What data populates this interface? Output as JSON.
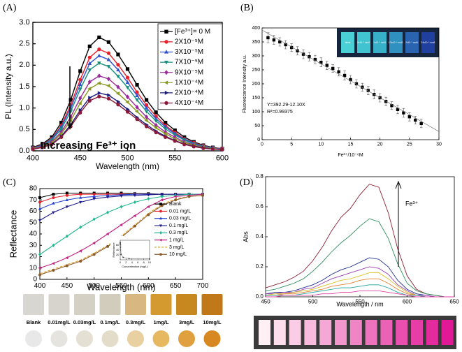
{
  "chart_data": [
    {
      "type": "line",
      "panel_label": "(A)",
      "x_label": "Wavelength (nm)",
      "y_label": "PL (Intensity a.u.)",
      "annotation": "Increasing Fe³⁺ ion",
      "xlim": [
        400,
        600
      ],
      "ylim": [
        0,
        3.0
      ],
      "xticks": [
        400,
        450,
        500,
        550,
        600
      ],
      "yticks": [
        {
          "value": 0,
          "label": "0.0"
        },
        0.5,
        {
          "value": 1,
          "label": "1.0"
        },
        1.5,
        {
          "value": 2,
          "label": "2.0"
        },
        2.5,
        {
          "value": 3,
          "label": "3.0"
        }
      ],
      "x": [
        400,
        410,
        420,
        430,
        440,
        450,
        460,
        470,
        480,
        490,
        500,
        510,
        520,
        530,
        540,
        550,
        560,
        570,
        580,
        590,
        600
      ],
      "series": [
        {
          "name": "[Fe³⁺]= 0 M",
          "color": "#000000",
          "marker": "square",
          "values": [
            0.08,
            0.16,
            0.32,
            0.66,
            1.19,
            1.86,
            2.44,
            2.65,
            2.54,
            2.25,
            1.91,
            1.54,
            1.19,
            0.9,
            0.66,
            0.48,
            0.32,
            0.21,
            0.13,
            0.08,
            0.05
          ]
        },
        {
          "name": "2X10⁻⁵M",
          "color": "#e8202a",
          "marker": "circle",
          "values": [
            0.07,
            0.14,
            0.28,
            0.59,
            1.07,
            1.66,
            2.18,
            2.37,
            2.28,
            2.01,
            1.71,
            1.37,
            1.07,
            0.81,
            0.59,
            0.43,
            0.28,
            0.19,
            0.12,
            0.07,
            0.05
          ]
        },
        {
          "name": "3X10⁻⁵M",
          "color": "#3050d0",
          "marker": "triangle-up",
          "values": [
            0.07,
            0.13,
            0.27,
            0.56,
            1.0,
            1.55,
            2.04,
            2.22,
            2.13,
            1.89,
            1.6,
            1.29,
            1.0,
            0.75,
            0.56,
            0.4,
            0.27,
            0.18,
            0.11,
            0.07,
            0.04
          ]
        },
        {
          "name": "7X10⁻⁵M",
          "color": "#1a8f80",
          "marker": "triangle-down",
          "values": [
            0.06,
            0.12,
            0.25,
            0.51,
            0.92,
            1.44,
            1.89,
            2.05,
            1.97,
            1.74,
            1.48,
            1.19,
            0.92,
            0.7,
            0.51,
            0.37,
            0.25,
            0.16,
            0.1,
            0.06,
            0.04
          ]
        },
        {
          "name": "9X10⁻⁵M",
          "color": "#9a2a9a",
          "marker": "diamond",
          "values": [
            0.05,
            0.11,
            0.21,
            0.44,
            0.79,
            1.23,
            1.61,
            1.75,
            1.68,
            1.49,
            1.26,
            1.02,
            0.79,
            0.6,
            0.44,
            0.32,
            0.21,
            0.14,
            0.09,
            0.05,
            0.04
          ]
        },
        {
          "name": "1X10⁻⁴M",
          "color": "#8a9a20",
          "marker": "triangle-left",
          "values": [
            0.05,
            0.09,
            0.19,
            0.4,
            0.71,
            1.11,
            1.45,
            1.58,
            1.52,
            1.34,
            1.14,
            0.92,
            0.71,
            0.54,
            0.4,
            0.28,
            0.19,
            0.13,
            0.08,
            0.05,
            0.03
          ]
        },
        {
          "name": "2X10⁻⁴M",
          "color": "#1c1c7a",
          "marker": "triangle-right",
          "values": [
            0.04,
            0.08,
            0.16,
            0.34,
            0.61,
            0.95,
            1.24,
            1.35,
            1.3,
            1.15,
            0.97,
            0.78,
            0.61,
            0.46,
            0.34,
            0.24,
            0.16,
            0.11,
            0.07,
            0.04,
            0.03
          ]
        },
        {
          "name": "4X10⁻⁴M",
          "color": "#8b1a3a",
          "marker": "circle",
          "values": [
            0.04,
            0.08,
            0.15,
            0.32,
            0.57,
            0.89,
            1.17,
            1.27,
            1.22,
            1.08,
            0.91,
            0.74,
            0.57,
            0.43,
            0.32,
            0.23,
            0.15,
            0.1,
            0.06,
            0.04,
            0.03
          ]
        }
      ]
    },
    {
      "type": "scatter",
      "panel_label": "(B)",
      "x_label": "Fe³⁺/10⁻⁶M",
      "y_label": "Fluorescence Intensity a.u.",
      "annotations": [
        "Y=392.29-12.10X",
        "R²=0.99375"
      ],
      "fit": {
        "intercept": 392.29,
        "slope": -12.1
      },
      "inset_labels": [
        "blank",
        "5x10⁻⁶ mol/L",
        "1x10⁻⁵ mol/L",
        "1.5x10⁻⁵ mol/L",
        "2x10⁻⁵ mol/L",
        "2.5x10⁻⁵ mol/L"
      ],
      "xlim": [
        0,
        30
      ],
      "ylim": [
        0,
        400
      ],
      "xticks": [
        0,
        5,
        10,
        15,
        20,
        25,
        30
      ],
      "yticks": [
        0,
        50,
        100,
        150,
        200,
        250,
        300,
        350,
        400
      ],
      "x": [
        1,
        2,
        3,
        4,
        5,
        6,
        7,
        8,
        9,
        10,
        11,
        12,
        13,
        14,
        15,
        16,
        17,
        18,
        19,
        20,
        21,
        22,
        23,
        24,
        25,
        26,
        27
      ],
      "series": [
        {
          "color": "#000000",
          "marker": "square",
          "values": [
            365,
            357,
            350,
            340,
            330,
            318,
            306,
            297,
            287,
            277,
            266,
            255,
            243,
            230,
            215,
            200,
            188,
            176,
            162,
            150,
            137,
            122,
            108,
            96,
            82,
            70,
            58
          ],
          "errors": [
            18,
            16,
            15,
            15,
            14,
            15,
            16,
            15,
            15,
            16,
            15,
            14,
            15,
            16,
            15,
            15,
            14,
            15,
            16,
            15,
            15,
            14,
            15,
            16,
            15,
            14,
            15
          ]
        }
      ]
    },
    {
      "type": "line",
      "panel_label": "(C)",
      "x_label": "Wavelength (nm)",
      "y_label": "Reflectance",
      "sample_labels": [
        "Blank",
        "0.01mg/L",
        "0.03mg/L",
        "0.1mg/L",
        "0.3mg/L",
        "1mg/L",
        "3mg/L",
        "10mg/L"
      ],
      "xlim": [
        400,
        700
      ],
      "ylim": [
        0,
        80
      ],
      "xticks": [
        400,
        450,
        500,
        550,
        600,
        650,
        700
      ],
      "yticks": [
        0,
        10,
        20,
        30,
        40,
        50,
        60,
        70,
        80
      ],
      "x": [
        400,
        425,
        450,
        475,
        500,
        525,
        550,
        575,
        600,
        625,
        650,
        675,
        700
      ],
      "series": [
        {
          "name": "Blank",
          "color": "#000000",
          "marker": "square",
          "values": [
            72,
            75,
            76,
            76,
            76,
            76,
            76,
            75.5,
            75.5,
            75,
            75,
            75,
            75
          ]
        },
        {
          "name": "0.01 mg/L",
          "color": "#e8202a",
          "marker": "circle",
          "values": [
            68,
            72,
            74,
            75,
            75,
            75,
            75,
            75,
            75,
            75,
            75,
            75,
            75
          ]
        },
        {
          "name": "0.03 mg/L",
          "color": "#2040d0",
          "marker": "triangle-up",
          "values": [
            62,
            67,
            70,
            72,
            73,
            74,
            74.5,
            75,
            75,
            75,
            75,
            75,
            75
          ]
        },
        {
          "name": "0.1 mg/L",
          "color": "#1c1c8a",
          "marker": "triangle-down",
          "values": [
            52,
            59,
            64,
            68,
            71,
            72.5,
            73.5,
            74,
            74.5,
            75,
            75,
            75,
            75
          ]
        },
        {
          "name": "0.3 mg/L",
          "color": "#20b890",
          "marker": "diamond",
          "values": [
            22,
            30,
            38,
            46,
            53,
            59,
            64,
            68,
            71,
            73,
            74,
            75,
            75
          ]
        },
        {
          "name": "1 mg/L",
          "color": "#c02080",
          "marker": "triangle-left",
          "values": [
            10,
            14,
            19,
            25,
            32,
            40,
            48,
            56,
            64,
            70,
            73,
            74,
            75
          ]
        },
        {
          "name": "3 mg/L",
          "color": "#e0a020",
          "dashed": true,
          "values": [
            5,
            9,
            13,
            17,
            23,
            30,
            38,
            48,
            58,
            66,
            71,
            73,
            74
          ]
        },
        {
          "name": "10 mg/L",
          "color": "#8a5a2a",
          "marker": "circle",
          "values": [
            4,
            8,
            12,
            16,
            22,
            29,
            37,
            47,
            57,
            65,
            70,
            73,
            74
          ]
        }
      ]
    },
    {
      "type": "line",
      "x_label": "Concentration (mg/L)",
      "y_label": "Reflectance",
      "xlim": [
        0,
        10
      ],
      "ylim": [
        0,
        80
      ],
      "xticks": [
        0,
        2,
        4,
        6,
        8,
        10
      ],
      "yticks": [
        20,
        40,
        60
      ],
      "x": [
        0,
        0.01,
        0.03,
        0.1,
        0.3,
        1,
        3,
        10
      ],
      "series": [
        {
          "color": "#333333",
          "marker": "square",
          "values": [
            72,
            68,
            62,
            52,
            22,
            10,
            5,
            4
          ]
        }
      ]
    },
    {
      "type": "line",
      "panel_label": "(D)",
      "x_label": "Wavelength / nm",
      "y_label": "Abs",
      "annotation": "Fe³⁺",
      "xlim": [
        450,
        650
      ],
      "ylim": [
        0,
        0.8
      ],
      "xticks": [
        450,
        500,
        550,
        600,
        650
      ],
      "yticks": [
        {
          "value": 0,
          "label": "0.0"
        },
        0.2,
        0.4,
        0.6,
        0.8
      ],
      "x": [
        450,
        460,
        470,
        480,
        490,
        500,
        510,
        520,
        530,
        540,
        550,
        560,
        570,
        580,
        590,
        600,
        610,
        620,
        630,
        640,
        650
      ],
      "series": [
        {
          "color": "#8b1a2e",
          "values": [
            0.06,
            0.08,
            0.1,
            0.13,
            0.17,
            0.24,
            0.33,
            0.44,
            0.53,
            0.59,
            0.68,
            0.75,
            0.73,
            0.56,
            0.32,
            0.14,
            0.05,
            0.02,
            0.01,
            0,
            0
          ]
        },
        {
          "color": "#2a8a5a",
          "values": [
            0.04,
            0.05,
            0.07,
            0.09,
            0.12,
            0.17,
            0.23,
            0.3,
            0.36,
            0.41,
            0.47,
            0.52,
            0.5,
            0.39,
            0.22,
            0.09,
            0.04,
            0.02,
            0.01,
            0,
            0
          ]
        },
        {
          "color": "#1c2a8a",
          "values": [
            0.02,
            0.03,
            0.03,
            0.04,
            0.06,
            0.08,
            0.11,
            0.15,
            0.18,
            0.2,
            0.23,
            0.26,
            0.25,
            0.2,
            0.11,
            0.05,
            0.02,
            0.01,
            0,
            0,
            0
          ]
        },
        {
          "color": "#9a3ab0",
          "values": [
            0.02,
            0.02,
            0.03,
            0.03,
            0.05,
            0.06,
            0.09,
            0.12,
            0.14,
            0.16,
            0.18,
            0.2,
            0.19,
            0.15,
            0.08,
            0.04,
            0.01,
            0.01,
            0,
            0,
            0
          ]
        },
        {
          "color": "#d8c020",
          "values": [
            0.01,
            0.02,
            0.02,
            0.03,
            0.04,
            0.05,
            0.07,
            0.09,
            0.11,
            0.12,
            0.14,
            0.16,
            0.16,
            0.12,
            0.07,
            0.03,
            0.01,
            0,
            0,
            0,
            0
          ]
        },
        {
          "color": "#e08030",
          "values": [
            0.01,
            0.01,
            0.02,
            0.02,
            0.03,
            0.04,
            0.05,
            0.07,
            0.08,
            0.09,
            0.11,
            0.12,
            0.12,
            0.09,
            0.05,
            0.02,
            0.01,
            0,
            0,
            0,
            0
          ]
        },
        {
          "color": "#20a0a0",
          "values": [
            0.01,
            0.01,
            0.01,
            0.01,
            0.02,
            0.03,
            0.04,
            0.05,
            0.06,
            0.06,
            0.07,
            0.08,
            0.08,
            0.06,
            0.03,
            0.01,
            0.01,
            0,
            0,
            0,
            0
          ]
        },
        {
          "color": "#e040a0",
          "values": [
            0,
            0,
            0.01,
            0.01,
            0.01,
            0.01,
            0.02,
            0.02,
            0.03,
            0.03,
            0.04,
            0.04,
            0.04,
            0.03,
            0.02,
            0.01,
            0,
            0,
            0,
            0,
            0
          ]
        }
      ]
    }
  ]
}
